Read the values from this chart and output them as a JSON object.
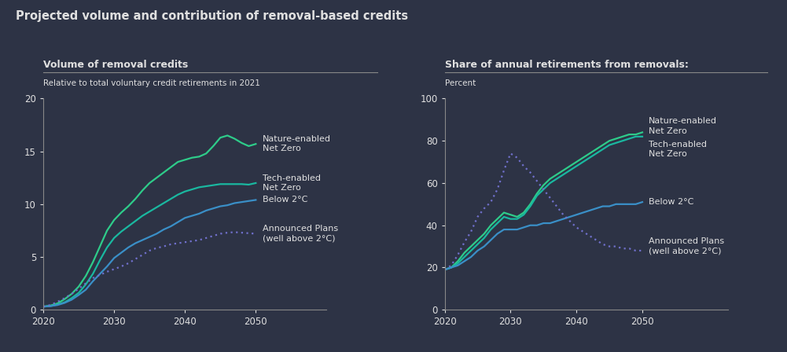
{
  "title": "Projected volume and contribution of removal-based credits",
  "bg_color": "#2d3345",
  "text_color": "#e0e0e0",
  "left_title": "Volume of removal credits",
  "left_subtitle": "Relative to total voluntary credit retirements in 2021",
  "right_title": "Share of annual retirements from removals:",
  "right_subtitle": "Percent",
  "years": [
    2020,
    2021,
    2022,
    2023,
    2024,
    2025,
    2026,
    2027,
    2028,
    2029,
    2030,
    2031,
    2032,
    2033,
    2034,
    2035,
    2036,
    2037,
    2038,
    2039,
    2040,
    2041,
    2042,
    2043,
    2044,
    2045,
    2046,
    2047,
    2048,
    2049,
    2050
  ],
  "left": {
    "nature_net_zero": [
      0.3,
      0.4,
      0.6,
      1.0,
      1.5,
      2.2,
      3.2,
      4.5,
      6.0,
      7.5,
      8.5,
      9.2,
      9.8,
      10.5,
      11.3,
      12.0,
      12.5,
      13.0,
      13.5,
      14.0,
      14.2,
      14.4,
      14.5,
      14.8,
      15.5,
      16.3,
      16.5,
      16.2,
      15.8,
      15.5,
      15.7
    ],
    "tech_net_zero": [
      0.3,
      0.35,
      0.5,
      0.7,
      1.1,
      1.6,
      2.4,
      3.4,
      4.7,
      5.9,
      6.8,
      7.4,
      7.9,
      8.4,
      8.9,
      9.3,
      9.7,
      10.1,
      10.5,
      10.9,
      11.2,
      11.4,
      11.6,
      11.7,
      11.8,
      11.9,
      11.9,
      11.9,
      11.9,
      11.85,
      12.0
    ],
    "below2": [
      0.3,
      0.35,
      0.45,
      0.65,
      0.95,
      1.4,
      1.9,
      2.7,
      3.4,
      4.1,
      4.9,
      5.4,
      5.9,
      6.3,
      6.6,
      6.9,
      7.2,
      7.6,
      7.9,
      8.3,
      8.7,
      8.9,
      9.1,
      9.4,
      9.6,
      9.8,
      9.9,
      10.1,
      10.2,
      10.3,
      10.4
    ],
    "announced": [
      0.3,
      0.45,
      0.75,
      1.1,
      1.5,
      2.0,
      2.5,
      3.0,
      3.3,
      3.6,
      3.85,
      4.1,
      4.4,
      4.8,
      5.2,
      5.6,
      5.85,
      6.0,
      6.2,
      6.3,
      6.4,
      6.5,
      6.6,
      6.8,
      7.0,
      7.2,
      7.3,
      7.35,
      7.3,
      7.25,
      7.2
    ]
  },
  "right": {
    "nature_net_zero": [
      19,
      20,
      23,
      27,
      30,
      33,
      36,
      40,
      43,
      46,
      45,
      44,
      46,
      50,
      55,
      59,
      62,
      64,
      66,
      68,
      70,
      72,
      74,
      76,
      78,
      80,
      81,
      82,
      83,
      83,
      84
    ],
    "tech_net_zero": [
      19,
      20,
      22,
      25,
      28,
      31,
      34,
      38,
      41,
      44,
      43,
      43,
      45,
      49,
      54,
      57,
      60,
      62,
      64,
      66,
      68,
      70,
      72,
      74,
      76,
      78,
      79,
      80,
      81,
      82,
      82
    ],
    "below2": [
      19,
      20,
      21,
      23,
      25,
      28,
      30,
      33,
      36,
      38,
      38,
      38,
      39,
      40,
      40,
      41,
      41,
      42,
      43,
      44,
      45,
      46,
      47,
      48,
      49,
      49,
      50,
      50,
      50,
      50,
      51
    ],
    "announced": [
      19,
      21,
      26,
      32,
      37,
      44,
      48,
      51,
      57,
      66,
      74,
      72,
      68,
      65,
      61,
      57,
      53,
      49,
      45,
      42,
      39,
      37,
      35,
      33,
      31,
      30,
      30,
      29,
      29,
      28,
      28
    ]
  },
  "colors": {
    "nature_net_zero": "#2ecc8a",
    "tech_net_zero": "#1ab8a0",
    "below2": "#3a8fc7",
    "announced": "#7070cc"
  },
  "line_styles": {
    "nature_net_zero": "solid",
    "tech_net_zero": "solid",
    "below2": "solid",
    "announced": "dotted"
  },
  "left_labels": {
    "nature_net_zero": [
      "Nature-enabled",
      "Net Zero"
    ],
    "tech_net_zero": [
      "Tech-enabled",
      "Net Zero"
    ],
    "below2": [
      "Below 2°C"
    ],
    "announced": [
      "Announced Plans",
      "(well above 2°C)"
    ]
  },
  "right_labels": {
    "nature_net_zero": [
      "Nature-enabled",
      "Net Zero"
    ],
    "tech_net_zero": [
      "Tech-enabled",
      "Net Zero"
    ],
    "below2": [
      "Below 2°C"
    ],
    "announced": [
      "Announced Plans",
      "(well above 2°C)"
    ]
  }
}
